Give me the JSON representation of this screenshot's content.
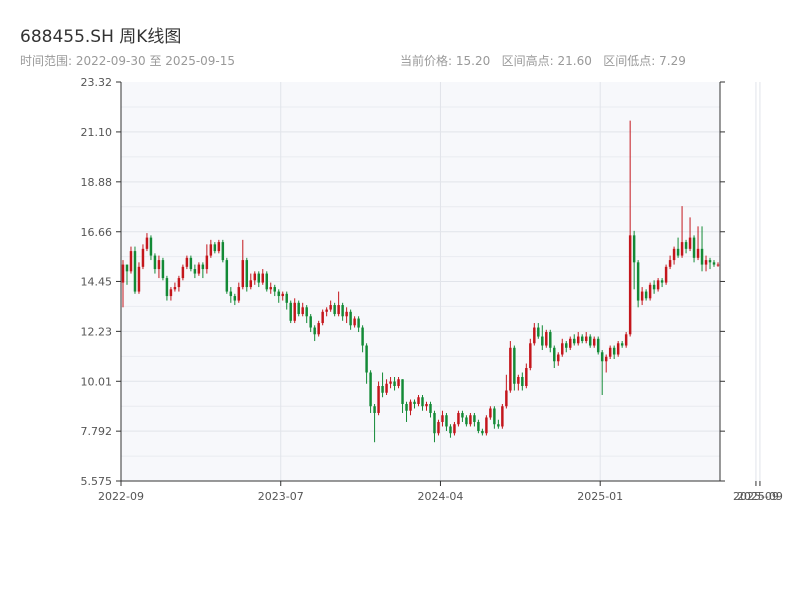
{
  "title": "688455.SH 周K线图",
  "subtitle": {
    "range_label": "时间范围:",
    "range_start": "2022-09-30",
    "range_sep": "至",
    "range_end": "2025-09-15",
    "stats_text": "当前价格: 15.20   区间高点: 21.60   区间低点: 7.29"
  },
  "colors": {
    "up": "#c4161c",
    "down": "#138a36",
    "plot_bg": "#f7f8fb",
    "grid": "#e1e4ea",
    "axis": "#333333"
  },
  "chart_data": {
    "type": "candlestick",
    "title": "688455.SH 周K线图",
    "ylim": [
      5.575,
      23.32
    ],
    "y_ticks": [
      "5.575",
      "7.792",
      "10.01",
      "12.23",
      "14.45",
      "16.66",
      "18.88",
      "21.10",
      "23.32"
    ],
    "x_ticks": [
      {
        "label": "2022-09",
        "week": 0
      },
      {
        "label": "2023-07",
        "week": 40
      },
      {
        "label": "2024-04",
        "week": 80
      },
      {
        "label": "2025-01",
        "week": 120
      },
      {
        "label": "2025-09",
        "week": 159
      },
      {
        "label": "2025-09",
        "week": 160
      }
    ],
    "candles": [
      [
        14.4,
        15.2,
        15.4,
        13.3
      ],
      [
        15.2,
        14.9,
        15.2,
        14.3
      ],
      [
        14.9,
        15.8,
        16.0,
        14.8
      ],
      [
        15.8,
        14.0,
        16.0,
        13.9
      ],
      [
        14.0,
        15.1,
        15.3,
        13.9
      ],
      [
        15.1,
        15.9,
        16.1,
        15.0
      ],
      [
        15.9,
        16.4,
        16.6,
        15.8
      ],
      [
        16.4,
        15.6,
        16.5,
        15.4
      ],
      [
        15.6,
        15.0,
        15.7,
        14.8
      ],
      [
        15.0,
        15.4,
        15.6,
        14.6
      ],
      [
        15.4,
        14.6,
        15.5,
        14.5
      ],
      [
        14.6,
        13.8,
        14.7,
        13.6
      ],
      [
        13.8,
        14.1,
        14.2,
        13.6
      ],
      [
        14.1,
        14.2,
        14.4,
        14.0
      ],
      [
        14.2,
        14.6,
        14.7,
        14.0
      ],
      [
        14.6,
        15.1,
        15.2,
        14.5
      ],
      [
        15.1,
        15.5,
        15.6,
        15.0
      ],
      [
        15.5,
        15.0,
        15.6,
        14.9
      ],
      [
        15.0,
        14.8,
        15.2,
        14.6
      ],
      [
        14.8,
        15.2,
        15.3,
        14.7
      ],
      [
        15.2,
        15.0,
        15.3,
        14.6
      ],
      [
        15.0,
        15.6,
        16.1,
        14.8
      ],
      [
        15.6,
        16.1,
        16.3,
        15.5
      ],
      [
        16.1,
        15.8,
        16.2,
        15.7
      ],
      [
        15.8,
        16.2,
        16.3,
        15.7
      ],
      [
        16.2,
        15.4,
        16.3,
        15.3
      ],
      [
        15.4,
        14.0,
        15.5,
        13.9
      ],
      [
        14.0,
        13.8,
        14.2,
        13.5
      ],
      [
        13.8,
        13.6,
        13.9,
        13.4
      ],
      [
        13.6,
        14.2,
        14.4,
        13.5
      ],
      [
        14.2,
        15.4,
        16.3,
        14.1
      ],
      [
        15.4,
        14.2,
        15.5,
        14.0
      ],
      [
        14.2,
        14.5,
        14.8,
        14.1
      ],
      [
        14.5,
        14.8,
        14.9,
        14.3
      ],
      [
        14.8,
        14.4,
        14.9,
        14.2
      ],
      [
        14.4,
        14.8,
        15.0,
        14.3
      ],
      [
        14.8,
        14.1,
        14.9,
        14.0
      ],
      [
        14.1,
        14.2,
        14.4,
        13.9
      ],
      [
        14.2,
        14.0,
        14.3,
        13.8
      ],
      [
        14.0,
        13.8,
        14.1,
        13.5
      ],
      [
        13.8,
        13.9,
        14.0,
        13.6
      ],
      [
        13.9,
        13.5,
        14.0,
        13.2
      ],
      [
        13.5,
        12.7,
        13.6,
        12.6
      ],
      [
        12.7,
        13.5,
        13.7,
        12.6
      ],
      [
        13.5,
        13.0,
        13.6,
        12.9
      ],
      [
        13.0,
        13.3,
        13.5,
        12.9
      ],
      [
        13.3,
        12.9,
        13.4,
        12.6
      ],
      [
        12.9,
        12.4,
        13.0,
        12.2
      ],
      [
        12.4,
        12.1,
        12.5,
        11.8
      ],
      [
        12.1,
        12.6,
        12.7,
        12.0
      ],
      [
        12.6,
        13.1,
        13.2,
        12.5
      ],
      [
        13.1,
        13.2,
        13.3,
        12.9
      ],
      [
        13.2,
        13.4,
        13.6,
        13.1
      ],
      [
        13.4,
        13.0,
        13.5,
        12.9
      ],
      [
        13.0,
        13.4,
        14.0,
        12.9
      ],
      [
        13.4,
        12.9,
        13.5,
        12.7
      ],
      [
        12.9,
        13.1,
        13.3,
        12.6
      ],
      [
        13.1,
        12.5,
        13.2,
        12.3
      ],
      [
        12.5,
        12.8,
        12.9,
        12.4
      ],
      [
        12.8,
        12.4,
        12.9,
        12.2
      ],
      [
        12.4,
        11.6,
        12.5,
        11.3
      ],
      [
        11.6,
        10.4,
        11.7,
        9.9
      ],
      [
        10.4,
        8.9,
        10.5,
        8.6
      ],
      [
        8.9,
        8.6,
        9.0,
        7.3
      ],
      [
        8.6,
        9.8,
        10.0,
        8.5
      ],
      [
        9.8,
        9.5,
        10.4,
        9.3
      ],
      [
        9.5,
        9.9,
        10.1,
        9.4
      ],
      [
        9.9,
        10.0,
        10.2,
        9.7
      ],
      [
        10.0,
        9.8,
        10.2,
        9.6
      ],
      [
        9.8,
        10.1,
        10.2,
        9.7
      ],
      [
        10.1,
        9.0,
        10.1,
        8.6
      ],
      [
        9.0,
        8.7,
        9.1,
        8.2
      ],
      [
        8.7,
        9.1,
        9.2,
        8.5
      ],
      [
        9.1,
        9.0,
        9.2,
        8.8
      ],
      [
        9.0,
        9.3,
        9.4,
        8.9
      ],
      [
        9.3,
        8.9,
        9.4,
        8.7
      ],
      [
        8.9,
        9.0,
        9.1,
        8.7
      ],
      [
        9.0,
        8.6,
        9.1,
        8.4
      ],
      [
        8.6,
        7.7,
        8.7,
        7.3
      ],
      [
        7.7,
        8.2,
        8.3,
        7.6
      ],
      [
        8.2,
        8.5,
        8.7,
        8.0
      ],
      [
        8.5,
        8.0,
        8.6,
        7.8
      ],
      [
        8.0,
        7.7,
        8.1,
        7.5
      ],
      [
        7.7,
        8.1,
        8.2,
        7.6
      ],
      [
        8.1,
        8.6,
        8.7,
        8.0
      ],
      [
        8.6,
        8.4,
        8.7,
        8.2
      ],
      [
        8.4,
        8.1,
        8.5,
        8.0
      ],
      [
        8.1,
        8.5,
        8.6,
        8.0
      ],
      [
        8.5,
        8.2,
        8.6,
        8.0
      ],
      [
        8.2,
        7.8,
        8.3,
        7.7
      ],
      [
        7.8,
        7.7,
        7.9,
        7.6
      ],
      [
        7.7,
        8.4,
        8.5,
        7.6
      ],
      [
        8.4,
        8.8,
        8.9,
        8.3
      ],
      [
        8.8,
        8.1,
        8.9,
        7.9
      ],
      [
        8.1,
        8.0,
        8.3,
        7.9
      ],
      [
        8.0,
        8.9,
        9.0,
        7.9
      ],
      [
        8.9,
        9.6,
        10.3,
        8.8
      ],
      [
        9.6,
        11.5,
        11.8,
        9.5
      ],
      [
        11.5,
        9.9,
        11.6,
        9.6
      ],
      [
        9.9,
        10.2,
        10.3,
        9.6
      ],
      [
        10.2,
        9.8,
        10.4,
        9.6
      ],
      [
        9.8,
        10.6,
        10.8,
        9.7
      ],
      [
        10.6,
        11.7,
        11.9,
        10.5
      ],
      [
        11.7,
        12.4,
        12.6,
        11.6
      ],
      [
        12.4,
        12.0,
        12.6,
        11.9
      ],
      [
        12.0,
        11.6,
        12.5,
        11.4
      ],
      [
        11.6,
        12.2,
        12.3,
        11.5
      ],
      [
        12.2,
        11.5,
        12.3,
        11.3
      ],
      [
        11.5,
        10.9,
        11.6,
        10.6
      ],
      [
        10.9,
        11.2,
        11.3,
        10.7
      ],
      [
        11.2,
        11.7,
        11.9,
        11.1
      ],
      [
        11.7,
        11.5,
        11.8,
        11.3
      ],
      [
        11.5,
        11.9,
        12.0,
        11.4
      ],
      [
        11.9,
        11.7,
        12.1,
        11.6
      ],
      [
        11.7,
        12.0,
        12.2,
        11.6
      ],
      [
        12.0,
        11.8,
        12.1,
        11.7
      ],
      [
        11.8,
        12.0,
        12.2,
        11.7
      ],
      [
        12.0,
        11.6,
        12.1,
        11.5
      ],
      [
        11.6,
        11.9,
        12.0,
        11.5
      ],
      [
        11.9,
        11.3,
        12.0,
        11.2
      ],
      [
        11.3,
        10.9,
        11.4,
        9.4
      ],
      [
        10.9,
        11.1,
        11.2,
        10.4
      ],
      [
        11.1,
        11.5,
        11.6,
        11.0
      ],
      [
        11.5,
        11.2,
        11.6,
        11.0
      ],
      [
        11.2,
        11.7,
        11.8,
        11.1
      ],
      [
        11.7,
        11.6,
        11.8,
        11.5
      ],
      [
        11.6,
        12.1,
        12.2,
        11.5
      ],
      [
        12.1,
        16.5,
        21.6,
        12.0
      ],
      [
        16.5,
        15.3,
        16.7,
        14.1
      ],
      [
        15.3,
        13.6,
        15.4,
        13.3
      ],
      [
        13.6,
        14.0,
        14.2,
        13.4
      ],
      [
        14.0,
        13.7,
        14.1,
        13.6
      ],
      [
        13.7,
        14.3,
        14.4,
        13.6
      ],
      [
        14.3,
        14.1,
        14.5,
        13.9
      ],
      [
        14.1,
        14.5,
        14.6,
        14.0
      ],
      [
        14.5,
        14.4,
        14.6,
        14.2
      ],
      [
        14.4,
        15.1,
        15.2,
        14.3
      ],
      [
        15.1,
        15.4,
        15.6,
        15.0
      ],
      [
        15.4,
        15.9,
        16.0,
        15.2
      ],
      [
        15.9,
        15.6,
        16.4,
        15.5
      ],
      [
        15.6,
        16.2,
        17.8,
        15.5
      ],
      [
        16.2,
        15.9,
        16.3,
        15.7
      ],
      [
        15.9,
        16.4,
        17.3,
        15.8
      ],
      [
        16.4,
        15.5,
        16.5,
        15.3
      ],
      [
        15.5,
        15.9,
        16.9,
        15.4
      ],
      [
        15.9,
        15.2,
        16.9,
        14.9
      ],
      [
        15.2,
        15.4,
        15.6,
        14.9
      ],
      [
        15.4,
        15.3,
        15.5,
        15.0
      ],
      [
        15.3,
        15.2,
        15.4,
        15.1
      ],
      [
        15.2,
        15.2,
        15.3,
        15.1
      ]
    ]
  }
}
